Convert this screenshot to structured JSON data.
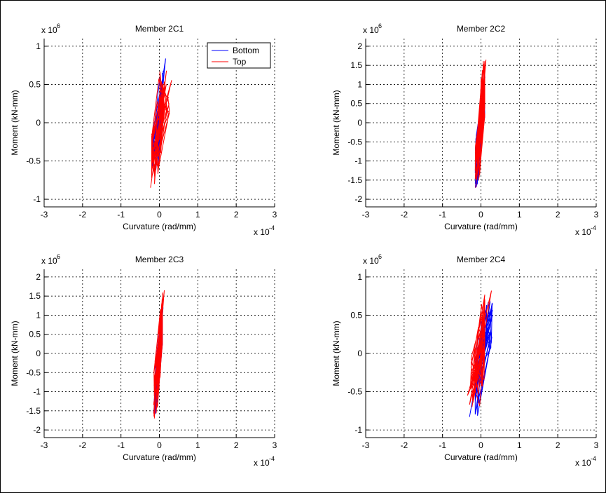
{
  "chart_data": [
    {
      "type": "line",
      "title": "Member 2C1",
      "xlabel": "Curvature (rad/mm)",
      "ylabel": "Moment (kN-mm)",
      "x_exponent_label": "x 10",
      "x_exponent": "-4",
      "y_exponent_label": "x 10",
      "y_exponent": "6",
      "xlim": [
        -3,
        3
      ],
      "ylim": [
        -1.1,
        1.1
      ],
      "xticks": [
        -3,
        -2,
        -1,
        0,
        1,
        2,
        3
      ],
      "xtick_labels": [
        "-3",
        "-2",
        "-1",
        "0",
        "1",
        "2",
        "3"
      ],
      "yticks": [
        -1,
        -0.5,
        0,
        0.5,
        1
      ],
      "ytick_labels": [
        "-1",
        "-0.5",
        "0",
        "0.5",
        "1"
      ],
      "grid": true,
      "legend": {
        "position": "top-right",
        "entries": [
          "Bottom",
          "Top"
        ]
      },
      "series": [
        {
          "name": "Bottom",
          "color": "#0000ff",
          "slope": 5.2,
          "amp": 0.12,
          "x": [
            -0.2,
            0.1
          ],
          "y": [
            -0.66,
            0.84
          ]
        },
        {
          "name": "Top",
          "color": "#ff0000",
          "slope": 3.7,
          "amp": 0.18,
          "x": [
            -0.2,
            0.32
          ],
          "y": [
            -0.85,
            0.68
          ]
        }
      ]
    },
    {
      "type": "line",
      "title": "Member 2C2",
      "xlabel": "Curvature (rad/mm)",
      "ylabel": "Moment (kN-mm)",
      "x_exponent_label": "x 10",
      "x_exponent": "-4",
      "y_exponent_label": "x 10",
      "y_exponent": "6",
      "xlim": [
        -3,
        3
      ],
      "ylim": [
        -2.2,
        2.2
      ],
      "xticks": [
        -3,
        -2,
        -1,
        0,
        1,
        2,
        3
      ],
      "xtick_labels": [
        "-3",
        "-2",
        "-1",
        "0",
        "1",
        "2",
        "3"
      ],
      "yticks": [
        -2,
        -1.5,
        -1,
        -0.5,
        0,
        0.5,
        1,
        1.5,
        2
      ],
      "ytick_labels": [
        "-2",
        "-1.5",
        "-1",
        "-0.5",
        "0",
        "0.5",
        "1",
        "1.5",
        "2"
      ],
      "grid": true,
      "series": [
        {
          "name": "Bottom",
          "color": "#0000ff",
          "slope": 11.5,
          "amp": 0.08,
          "x": [
            -0.15,
            0.1
          ],
          "y": [
            -1.7,
            1.2
          ]
        },
        {
          "name": "Top",
          "color": "#ff0000",
          "slope": 12.5,
          "amp": 0.09,
          "x": [
            -0.15,
            0.1
          ],
          "y": [
            -1.7,
            1.65
          ]
        }
      ]
    },
    {
      "type": "line",
      "title": "Member 2C3",
      "xlabel": "Curvature (rad/mm)",
      "ylabel": "Moment (kN-mm)",
      "x_exponent_label": "x 10",
      "x_exponent": "-4",
      "y_exponent_label": "x 10",
      "y_exponent": "6",
      "xlim": [
        -3,
        3
      ],
      "ylim": [
        -2.2,
        2.2
      ],
      "xticks": [
        -3,
        -2,
        -1,
        0,
        1,
        2,
        3
      ],
      "xtick_labels": [
        "-3",
        "-2",
        "-1",
        "0",
        "1",
        "2",
        "3"
      ],
      "yticks": [
        -2,
        -1.5,
        -1,
        -0.5,
        0,
        0.5,
        1,
        1.5,
        2
      ],
      "ytick_labels": [
        "-2",
        "-1.5",
        "-1",
        "-0.5",
        "0",
        "0.5",
        "1",
        "1.5",
        "2"
      ],
      "grid": true,
      "series": [
        {
          "name": "Bottom",
          "color": "#0000ff",
          "slope": 12.5,
          "amp": 0.07,
          "x": [
            -0.15,
            0.08
          ],
          "y": [
            -1.6,
            1.2
          ]
        },
        {
          "name": "Top",
          "color": "#ff0000",
          "slope": 13.0,
          "amp": 0.08,
          "x": [
            -0.15,
            0.08
          ],
          "y": [
            -1.7,
            1.65
          ]
        }
      ]
    },
    {
      "type": "line",
      "title": "Member 2C4",
      "xlabel": "Curvature (rad/mm)",
      "ylabel": "Moment (kN-mm)",
      "x_exponent_label": "x 10",
      "x_exponent": "-4",
      "y_exponent_label": "x 10",
      "y_exponent": "6",
      "xlim": [
        -3,
        3
      ],
      "ylim": [
        -1.1,
        1.1
      ],
      "xticks": [
        -3,
        -2,
        -1,
        0,
        1,
        2,
        3
      ],
      "xtick_labels": [
        "-3",
        "-2",
        "-1",
        "0",
        "1",
        "2",
        "3"
      ],
      "yticks": [
        -1,
        -0.5,
        0,
        0.5,
        1
      ],
      "ytick_labels": [
        "-1",
        "-0.5",
        "0",
        "0.5",
        "1"
      ],
      "grid": true,
      "series": [
        {
          "name": "Bottom",
          "color": "#0000ff",
          "slope": 2.8,
          "amp": 0.22,
          "x": [
            -0.15,
            0.3
          ],
          "y": [
            -0.83,
            0.68
          ]
        },
        {
          "name": "Top",
          "color": "#ff0000",
          "slope": 3.0,
          "amp": 0.22,
          "x": [
            -0.35,
            0.1
          ],
          "y": [
            -0.7,
            0.82
          ]
        }
      ]
    }
  ]
}
